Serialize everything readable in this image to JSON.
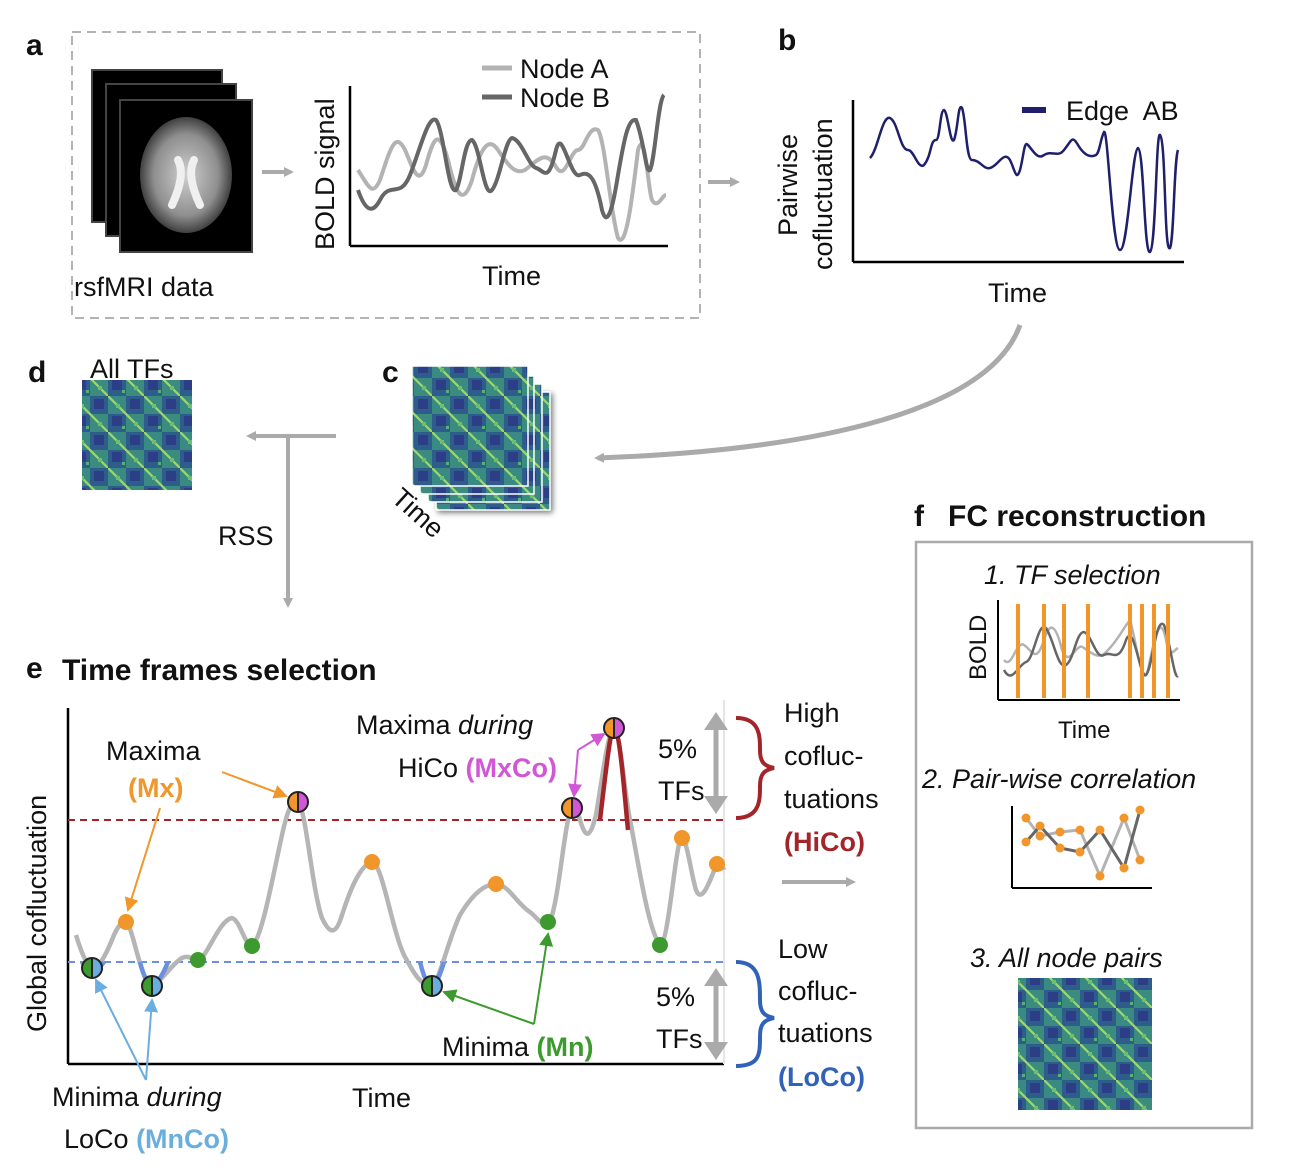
{
  "panels": {
    "a": {
      "letter": "a",
      "data_label": "rsfMRI data",
      "y_label": "BOLD signal",
      "x_label": "Time",
      "legend": [
        {
          "name": "Node A",
          "color": "#b3b3b3"
        },
        {
          "name": "Node B",
          "color": "#666666"
        }
      ]
    },
    "b": {
      "letter": "b",
      "y_label_1": "Pairwise",
      "y_label_2": "cofluctuation",
      "x_label": "Time",
      "legend": {
        "name": "Edge  AB",
        "color": "#1f1f6b"
      }
    },
    "c": {
      "letter": "c",
      "axis_label": "Time"
    },
    "d": {
      "letter": "d",
      "title": "All TFs",
      "rss_label": "RSS"
    },
    "e": {
      "letter": "e",
      "title": "Time frames selection",
      "y_label": "Global cofluctuation",
      "x_label": "Time",
      "maxima_1": "Maxima",
      "maxima_2": "(Mx)",
      "maxima_during_1": "Maxima",
      "maxima_during_2": "during",
      "maxima_during_3": "HiCo",
      "maxima_during_4": "(MxCo)",
      "minima_1": "Minima",
      "minima_2": "(Mn)",
      "minima_during_1": "Minima",
      "minima_during_2": "during",
      "minima_during_3": "LoCo",
      "minima_during_4": "(MnCo)",
      "pct_top_1": "5%",
      "pct_top_2": "TFs",
      "pct_bot_1": "5%",
      "pct_bot_2": "TFs",
      "high_1": "High",
      "high_2": "cofluc-",
      "high_3": "tuations",
      "high_4": "(HiCo)",
      "low_1": "Low",
      "low_2": "cofluc-",
      "low_3": "tuations",
      "low_4": "(LoCo)"
    },
    "f": {
      "letter": "f",
      "title": "FC reconstruction",
      "step1": "1. TF selection",
      "step1_ylabel": "BOLD",
      "step1_xlabel": "Time",
      "step2": "2. Pair-wise correlation",
      "step3": "3. All node pairs"
    }
  },
  "colors": {
    "mx": "#f0962a",
    "mn": "#3d9a2e",
    "mxco": "#d157d6",
    "mnco": "#6aaee0",
    "hico": "#a3252a",
    "loco": "#3063b8",
    "gray_curve": "#b5b5b5",
    "arrow_gray": "#aaaaaa"
  }
}
